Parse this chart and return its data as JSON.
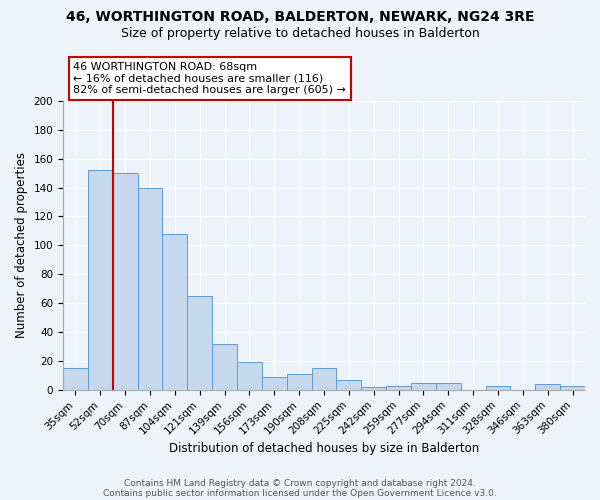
{
  "title": "46, WORTHINGTON ROAD, BALDERTON, NEWARK, NG24 3RE",
  "subtitle": "Size of property relative to detached houses in Balderton",
  "xlabel": "Distribution of detached houses by size in Balderton",
  "ylabel": "Number of detached properties",
  "bar_labels": [
    "35sqm",
    "52sqm",
    "70sqm",
    "87sqm",
    "104sqm",
    "121sqm",
    "139sqm",
    "156sqm",
    "173sqm",
    "190sqm",
    "208sqm",
    "225sqm",
    "242sqm",
    "259sqm",
    "277sqm",
    "294sqm",
    "311sqm",
    "328sqm",
    "346sqm",
    "363sqm",
    "380sqm"
  ],
  "bar_values": [
    15,
    152,
    150,
    140,
    108,
    65,
    32,
    19,
    9,
    11,
    15,
    7,
    2,
    3,
    5,
    5,
    0,
    3,
    0,
    4,
    3
  ],
  "bar_color": "#c5d8ed",
  "bar_edge_color": "#5b9bd5",
  "ylim": [
    0,
    200
  ],
  "yticks": [
    0,
    20,
    40,
    60,
    80,
    100,
    120,
    140,
    160,
    180,
    200
  ],
  "annotation_title": "46 WORTHINGTON ROAD: 68sqm",
  "annotation_line1": "← 16% of detached houses are smaller (116)",
  "annotation_line2": "82% of semi-detached houses are larger (605) →",
  "annotation_box_color": "#ffffff",
  "annotation_box_edge": "#cc0000",
  "red_line_color": "#cc0000",
  "footer_line1": "Contains HM Land Registry data © Crown copyright and database right 2024.",
  "footer_line2": "Contains public sector information licensed under the Open Government Licence v3.0.",
  "background_color": "#eef2f9",
  "grid_color": "#ffffff",
  "title_fontsize": 10,
  "subtitle_fontsize": 9,
  "axis_label_fontsize": 8.5,
  "tick_fontsize": 7.5,
  "footer_fontsize": 6.5
}
